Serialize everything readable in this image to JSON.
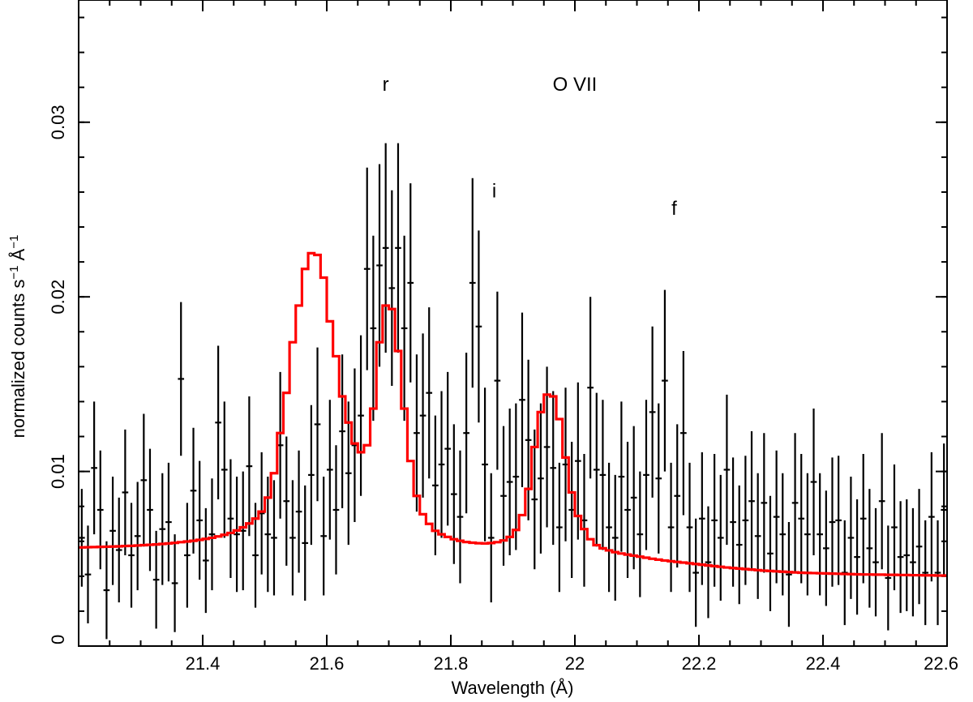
{
  "chart_data": {
    "type": "scatter",
    "xlabel": "Wavelength (Å)",
    "ylabel_base": "normalized counts s",
    "ylabel_mid": " Å",
    "ylabel_sup": "−1",
    "xlim": [
      21.2,
      22.6
    ],
    "ylim": [
      0,
      0.037
    ],
    "x_ticks": [
      21.4,
      21.6,
      21.8,
      22.0,
      22.2,
      22.4,
      22.6
    ],
    "x_tick_labels": [
      "21.4",
      "21.6",
      "21.8",
      "22",
      "22.2",
      "22.4",
      "22.6"
    ],
    "y_ticks": [
      0,
      0.01,
      0.02,
      0.03
    ],
    "y_tick_labels": [
      "0",
      "0.01",
      "0.02",
      "0.03"
    ],
    "x_minor_step": 0.05,
    "y_minor_step": 0.002,
    "bin_half_width": 0.005,
    "annotations": [
      {
        "text": "r",
        "x": 21.695,
        "y": 0.0318
      },
      {
        "text": "O VII",
        "x": 22.0,
        "y": 0.0318
      },
      {
        "text": "i",
        "x": 21.87,
        "y": 0.0257
      },
      {
        "text": "f",
        "x": 22.16,
        "y": 0.0247
      }
    ],
    "series": [
      {
        "style": "error-bars",
        "color": "#000000",
        "x": [
          21.205,
          21.215,
          21.225,
          21.235,
          21.245,
          21.255,
          21.265,
          21.275,
          21.285,
          21.295,
          21.305,
          21.315,
          21.325,
          21.335,
          21.345,
          21.355,
          21.365,
          21.375,
          21.385,
          21.395,
          21.405,
          21.415,
          21.425,
          21.435,
          21.445,
          21.455,
          21.465,
          21.475,
          21.485,
          21.495,
          21.505,
          21.515,
          21.525,
          21.535,
          21.545,
          21.555,
          21.565,
          21.575,
          21.585,
          21.595,
          21.605,
          21.615,
          21.625,
          21.635,
          21.645,
          21.655,
          21.665,
          21.675,
          21.685,
          21.695,
          21.705,
          21.715,
          21.725,
          21.735,
          21.745,
          21.755,
          21.765,
          21.775,
          21.785,
          21.795,
          21.805,
          21.815,
          21.825,
          21.835,
          21.845,
          21.855,
          21.865,
          21.875,
          21.885,
          21.895,
          21.905,
          21.915,
          21.925,
          21.935,
          21.945,
          21.955,
          21.965,
          21.975,
          21.985,
          21.995,
          22.005,
          22.015,
          22.025,
          22.035,
          22.045,
          22.055,
          22.065,
          22.075,
          22.085,
          22.095,
          22.105,
          22.115,
          22.125,
          22.135,
          22.145,
          22.155,
          22.165,
          22.175,
          22.185,
          22.195,
          22.205,
          22.215,
          22.225,
          22.235,
          22.245,
          22.255,
          22.265,
          22.275,
          22.285,
          22.295,
          22.305,
          22.315,
          22.325,
          22.335,
          22.345,
          22.355,
          22.365,
          22.375,
          22.385,
          22.395,
          22.405,
          22.415,
          22.425,
          22.435,
          22.445,
          22.455,
          22.465,
          22.475,
          22.485,
          22.495,
          22.505,
          22.515,
          22.525,
          22.535,
          22.545,
          22.555,
          22.565,
          22.575,
          22.585,
          22.595
        ],
        "y": [
          0.0062,
          0.0041,
          0.0102,
          0.0078,
          0.0032,
          0.0066,
          0.0055,
          0.0088,
          0.0052,
          0.0063,
          0.0095,
          0.0078,
          0.0038,
          0.0067,
          0.0071,
          0.0036,
          0.0153,
          0.0052,
          0.0089,
          0.0072,
          0.0049,
          0.0064,
          0.0128,
          0.0101,
          0.0073,
          0.0064,
          0.0066,
          0.0103,
          0.0052,
          0.0076,
          0.0064,
          0.0062,
          0.0115,
          0.0083,
          0.0062,
          0.0077,
          0.0059,
          0.0098,
          0.0127,
          0.0063,
          0.0101,
          0.0078,
          0.0123,
          0.0099,
          0.0115,
          0.0132,
          0.0216,
          0.0182,
          0.0218,
          0.0228,
          0.0205,
          0.0228,
          0.0182,
          0.0208,
          0.0122,
          0.0132,
          0.0145,
          0.0092,
          0.0104,
          0.0113,
          0.0087,
          0.0074,
          0.0122,
          0.0208,
          0.0183,
          0.0104,
          0.0062,
          0.0152,
          0.0086,
          0.0094,
          0.0097,
          0.0141,
          0.0118,
          0.0084,
          0.0096,
          0.0114,
          0.0102,
          0.0068,
          0.0104,
          0.0078,
          0.0106,
          0.0072,
          0.0148,
          0.0101,
          0.0098,
          0.0068,
          0.0062,
          0.0097,
          0.0078,
          0.0085,
          0.0064,
          0.0098,
          0.0134,
          0.0096,
          0.0152,
          0.0068,
          0.0086,
          0.0122,
          0.0068,
          0.0042,
          0.0073,
          0.0048,
          0.0072,
          0.0062,
          0.0101,
          0.0071,
          0.0058,
          0.0072,
          0.0083,
          0.0063,
          0.0082,
          0.0053,
          0.0074,
          0.0064,
          0.0041,
          0.0082,
          0.0073,
          0.0064,
          0.0094,
          0.0064,
          0.0056,
          0.0071,
          0.0072,
          0.0042,
          0.0062,
          0.0051,
          0.0073,
          0.0056,
          0.0048,
          0.0083,
          0.0039,
          0.0068,
          0.0051,
          0.0052,
          0.0048,
          0.0057,
          0.0042,
          0.0074,
          0.0042,
          0.0078
        ],
        "err": [
          0.0028,
          0.0028,
          0.0038,
          0.0034,
          0.0028,
          0.0031,
          0.003,
          0.0036,
          0.003,
          0.0031,
          0.0038,
          0.0035,
          0.0028,
          0.0032,
          0.0034,
          0.0028,
          0.0044,
          0.003,
          0.0036,
          0.0034,
          0.003,
          0.0032,
          0.0044,
          0.0039,
          0.0034,
          0.0033,
          0.0034,
          0.004,
          0.003,
          0.0035,
          0.0033,
          0.0033,
          0.0042,
          0.0037,
          0.0033,
          0.0035,
          0.0033,
          0.004,
          0.0044,
          0.0034,
          0.004,
          0.0037,
          0.0044,
          0.0041,
          0.0044,
          0.0046,
          0.0058,
          0.0053,
          0.0058,
          0.006,
          0.0056,
          0.006,
          0.0053,
          0.0057,
          0.0045,
          0.0047,
          0.0049,
          0.004,
          0.0042,
          0.0044,
          0.004,
          0.0038,
          0.0046,
          0.006,
          0.0055,
          0.0044,
          0.0037,
          0.0051,
          0.004,
          0.0042,
          0.0042,
          0.005,
          0.0046,
          0.004,
          0.0043,
          0.0046,
          0.0044,
          0.0037,
          0.0044,
          0.0039,
          0.0045,
          0.0038,
          0.0052,
          0.0044,
          0.0043,
          0.0037,
          0.0036,
          0.0043,
          0.0039,
          0.0041,
          0.0036,
          0.0043,
          0.0049,
          0.0043,
          0.0052,
          0.0037,
          0.0041,
          0.0047,
          0.0037,
          0.0031,
          0.0038,
          0.0032,
          0.0038,
          0.0036,
          0.0043,
          0.0037,
          0.0034,
          0.0037,
          0.004,
          0.0036,
          0.004,
          0.0033,
          0.0038,
          0.0035,
          0.003,
          0.004,
          0.0037,
          0.0035,
          0.0042,
          0.0035,
          0.0033,
          0.0037,
          0.0037,
          0.003,
          0.0035,
          0.0033,
          0.0037,
          0.0034,
          0.0031,
          0.0039,
          0.003,
          0.0036,
          0.0032,
          0.0032,
          0.0031,
          0.0033,
          0.003,
          0.0037,
          0.003,
          0.0038
        ]
      },
      {
        "style": "step-model",
        "color": "#ff0000",
        "x": [
          21.205,
          21.215,
          21.225,
          21.235,
          21.245,
          21.255,
          21.265,
          21.275,
          21.285,
          21.295,
          21.305,
          21.315,
          21.325,
          21.335,
          21.345,
          21.355,
          21.365,
          21.375,
          21.385,
          21.395,
          21.405,
          21.415,
          21.425,
          21.435,
          21.445,
          21.455,
          21.465,
          21.475,
          21.485,
          21.495,
          21.505,
          21.515,
          21.525,
          21.535,
          21.545,
          21.555,
          21.565,
          21.575,
          21.585,
          21.595,
          21.605,
          21.615,
          21.625,
          21.635,
          21.645,
          21.655,
          21.665,
          21.675,
          21.685,
          21.695,
          21.705,
          21.715,
          21.725,
          21.735,
          21.745,
          21.755,
          21.765,
          21.775,
          21.785,
          21.795,
          21.805,
          21.815,
          21.825,
          21.835,
          21.845,
          21.855,
          21.865,
          21.875,
          21.885,
          21.895,
          21.905,
          21.915,
          21.925,
          21.935,
          21.945,
          21.955,
          21.965,
          21.975,
          21.985,
          21.995,
          22.005,
          22.015,
          22.025,
          22.035,
          22.045,
          22.055,
          22.065,
          22.075,
          22.085,
          22.095,
          22.105,
          22.115,
          22.125,
          22.135,
          22.145,
          22.155,
          22.165,
          22.175,
          22.185,
          22.195,
          22.205,
          22.215,
          22.225,
          22.235,
          22.245,
          22.255,
          22.265,
          22.275,
          22.285,
          22.295,
          22.305,
          22.315,
          22.325,
          22.335,
          22.345,
          22.355,
          22.365,
          22.375,
          22.385,
          22.395,
          22.405,
          22.415,
          22.425,
          22.435,
          22.445,
          22.455,
          22.465,
          22.475,
          22.485,
          22.495,
          22.505,
          22.515,
          22.525,
          22.535,
          22.545,
          22.555,
          22.565,
          22.575,
          22.585,
          22.595
        ],
        "y": [
          0.00565,
          0.00566,
          0.00567,
          0.00568,
          0.00569,
          0.0057,
          0.00571,
          0.00573,
          0.00574,
          0.00576,
          0.00578,
          0.0058,
          0.00582,
          0.00585,
          0.00588,
          0.00591,
          0.00595,
          0.00599,
          0.00603,
          0.00608,
          0.00614,
          0.0062,
          0.00628,
          0.00637,
          0.00648,
          0.00662,
          0.0068,
          0.00702,
          0.0073,
          0.0077,
          0.0085,
          0.0099,
          0.0122,
          0.0145,
          0.0174,
          0.0195,
          0.0216,
          0.0225,
          0.0224,
          0.0211,
          0.0186,
          0.0166,
          0.0143,
          0.0128,
          0.0116,
          0.0111,
          0.0115,
          0.0136,
          0.0174,
          0.0195,
          0.0193,
          0.0169,
          0.0136,
          0.0106,
          0.0086,
          0.00755,
          0.007,
          0.0066,
          0.0064,
          0.00625,
          0.00612,
          0.00603,
          0.00596,
          0.00592,
          0.00589,
          0.00588,
          0.0059,
          0.00595,
          0.00605,
          0.00625,
          0.00665,
          0.0075,
          0.009,
          0.0114,
          0.0134,
          0.0144,
          0.0143,
          0.013,
          0.0108,
          0.0088,
          0.00745,
          0.0067,
          0.00612,
          0.00578,
          0.0056,
          0.00548,
          0.00538,
          0.0053,
          0.00524,
          0.00518,
          0.00512,
          0.00506,
          0.005,
          0.00495,
          0.0049,
          0.00486,
          0.00482,
          0.00478,
          0.00474,
          0.0047,
          0.00466,
          0.00462,
          0.00458,
          0.00454,
          0.0045,
          0.00447,
          0.00444,
          0.00441,
          0.00438,
          0.00435,
          0.00432,
          0.0043,
          0.00428,
          0.00426,
          0.00424,
          0.00422,
          0.0042,
          0.00419,
          0.00418,
          0.00417,
          0.00416,
          0.00415,
          0.00414,
          0.00413,
          0.00412,
          0.00411,
          0.0041,
          0.0041,
          0.00409,
          0.00409,
          0.00408,
          0.00408,
          0.00407,
          0.00407,
          0.00406,
          0.00406,
          0.00405,
          0.00405,
          0.00404,
          0.00404
        ]
      }
    ]
  }
}
